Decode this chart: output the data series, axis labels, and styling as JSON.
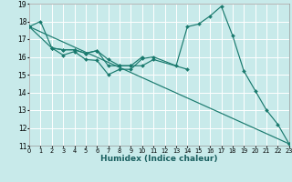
{
  "xlabel": "Humidex (Indice chaleur)",
  "bg_color": "#c8eaea",
  "grid_color": "#ffffff",
  "line_color": "#1a7a6e",
  "xlim": [
    0,
    23
  ],
  "ylim": [
    11,
    19
  ],
  "xticks": [
    0,
    1,
    2,
    3,
    4,
    5,
    6,
    7,
    8,
    9,
    10,
    11,
    12,
    13,
    14,
    15,
    16,
    17,
    18,
    19,
    20,
    21,
    22,
    23
  ],
  "yticks": [
    11,
    12,
    13,
    14,
    15,
    16,
    17,
    18,
    19
  ],
  "line1_x": [
    0,
    1,
    2,
    3,
    4,
    5,
    6,
    7,
    8,
    9,
    10,
    11,
    13,
    14,
    15,
    16,
    17,
    18,
    19,
    20,
    21,
    22,
    23
  ],
  "line1_y": [
    17.7,
    18.0,
    16.5,
    16.1,
    16.3,
    15.85,
    15.8,
    15.0,
    15.3,
    15.3,
    15.9,
    16.0,
    15.5,
    17.7,
    17.85,
    18.3,
    18.85,
    17.2,
    15.2,
    14.1,
    13.0,
    12.2,
    11.1
  ],
  "line2_x": [
    0,
    2,
    3,
    4,
    5,
    6,
    7,
    8,
    9,
    10
  ],
  "line2_y": [
    17.7,
    16.5,
    16.4,
    16.4,
    16.2,
    16.35,
    15.85,
    15.5,
    15.5,
    16.0
  ],
  "line3_x": [
    2,
    3,
    4,
    5,
    6,
    7,
    8,
    9,
    10,
    11,
    14
  ],
  "line3_y": [
    16.5,
    16.4,
    16.4,
    16.2,
    16.35,
    15.5,
    15.5,
    15.5,
    15.5,
    15.85,
    15.3
  ],
  "line4_x": [
    0,
    23
  ],
  "line4_y": [
    17.7,
    11.1
  ]
}
